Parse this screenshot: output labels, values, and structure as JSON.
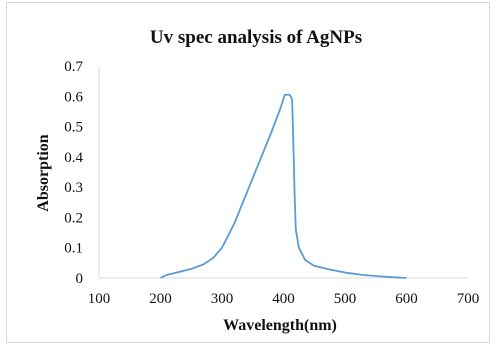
{
  "chart_data": {
    "type": "line",
    "title": "Uv spec analysis of AgNPs",
    "xlabel": "Wavelength(nm)",
    "ylabel": "Absorption",
    "xlim": [
      100,
      700
    ],
    "ylim": [
      0,
      0.7
    ],
    "x_ticks": [
      "100",
      "200",
      "300",
      "400",
      "500",
      "600",
      "700"
    ],
    "y_ticks": [
      "0",
      "0.1",
      "0.2",
      "0.3",
      "0.4",
      "0.5",
      "0.6",
      "0.7"
    ],
    "grid": false,
    "legend": "none",
    "colors": {
      "line": "#5b9bd5",
      "axis": "#d9d9d9",
      "text": "#111111"
    },
    "series": [
      {
        "x": [
          200,
          210,
          230,
          250,
          270,
          285,
          300,
          320,
          340,
          360,
          380,
          395,
          402,
          410,
          414,
          416,
          418,
          420,
          425,
          435,
          450,
          475,
          500,
          530,
          560,
          600
        ],
        "y": [
          0.0,
          0.01,
          0.02,
          0.03,
          0.045,
          0.065,
          0.1,
          0.18,
          0.28,
          0.38,
          0.48,
          0.56,
          0.605,
          0.605,
          0.59,
          0.45,
          0.28,
          0.16,
          0.1,
          0.06,
          0.04,
          0.028,
          0.018,
          0.01,
          0.005,
          0.0
        ]
      }
    ]
  }
}
